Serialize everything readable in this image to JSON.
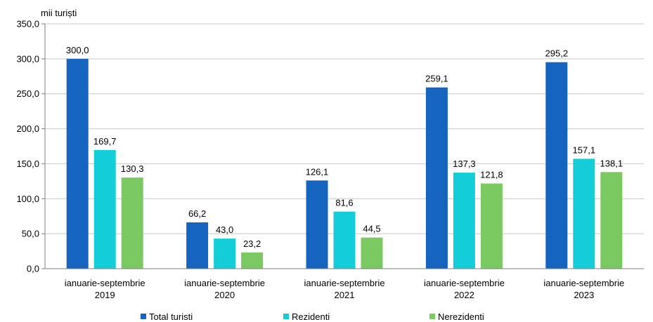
{
  "chart_data": {
    "type": "bar",
    "unit_label": "mii turiști",
    "categories": [
      [
        "ianuarie-septembrie",
        "2019"
      ],
      [
        "ianuarie-septembrie",
        "2020"
      ],
      [
        "ianuarie-septembrie",
        "2021"
      ],
      [
        "ianuarie-septembrie",
        "2022"
      ],
      [
        "ianuarie-septembrie",
        "2023"
      ]
    ],
    "series": [
      {
        "name": "Total turisti",
        "color": "#1565C0",
        "values": [
          300.0,
          66.2,
          126.1,
          259.1,
          295.2
        ],
        "labels": [
          "300,0",
          "66,2",
          "126,1",
          "259,1",
          "295,2"
        ]
      },
      {
        "name": "Rezidenti",
        "color": "#13CDD9",
        "values": [
          169.7,
          43.0,
          81.6,
          137.3,
          157.1
        ],
        "labels": [
          "169,7",
          "43,0",
          "81,6",
          "137,3",
          "157,1"
        ]
      },
      {
        "name": "Nerezidenti",
        "color": "#7BC961",
        "values": [
          130.3,
          23.2,
          44.5,
          121.8,
          138.1
        ],
        "labels": [
          "130,3",
          "23,2",
          "44,5",
          "121,8",
          "138,1"
        ]
      }
    ],
    "ylim": [
      0,
      350
    ],
    "yticks": [
      0,
      50,
      100,
      150,
      200,
      250,
      300,
      350
    ],
    "ytick_labels": [
      "0,0",
      "50,0",
      "100,0",
      "150,0",
      "200,0",
      "250,0",
      "300,0",
      "350,0"
    ],
    "grid": true,
    "legend_position": "bottom"
  }
}
